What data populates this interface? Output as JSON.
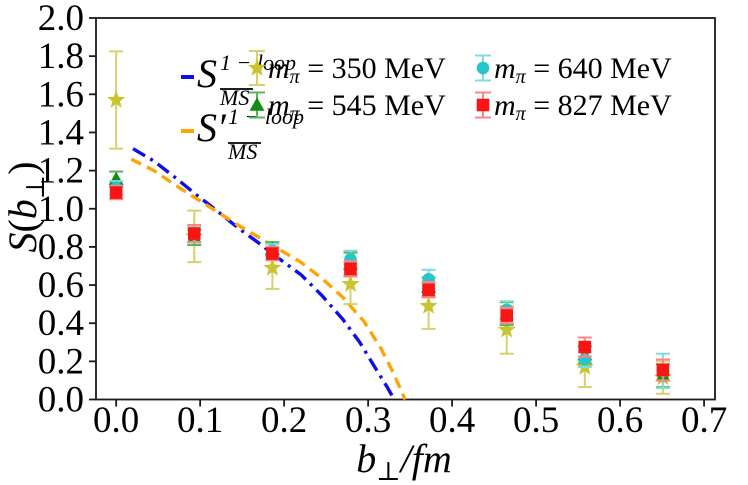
{
  "figure": {
    "description": "Lattice QCD soft function S(b_perp) versus transverse separation b_perp/fm, four pion masses with error bars, plus 1-loop MS-bar theory curves"
  },
  "chart_data": {
    "type": "scatter",
    "title": "",
    "xlabel": "b⊥/fm",
    "ylabel": "S(b⊥)",
    "xlabel_parts": {
      "sym": "b",
      "sub": "⊥",
      "rest": "/fm"
    },
    "ylabel_parts": {
      "func": "S",
      "open": "(",
      "sym": "b",
      "sub": "⊥",
      "close": ")"
    },
    "xlim": [
      -0.024,
      0.713
    ],
    "ylim": [
      0.0,
      2.0
    ],
    "xticks": [
      0.0,
      0.1,
      0.2,
      0.3,
      0.4,
      0.5,
      0.6,
      0.7
    ],
    "yticks": [
      0.0,
      0.2,
      0.4,
      0.6,
      0.8,
      1.0,
      1.2,
      1.4,
      1.6,
      1.8,
      2.0
    ],
    "grid": false,
    "legend_position": "upper-center-inside-no-frame",
    "frame_color": "#1a1a1a",
    "curves": [
      {
        "name": "S-MSbar-1loop",
        "color": "#0d0df2",
        "dash": "dashdot",
        "label": {
          "base": "S",
          "prime": "",
          "sup": "1 − loop",
          "sub": "MS",
          "overline": true
        },
        "points": [
          [
            0.02,
            1.315
          ],
          [
            0.045,
            1.25
          ],
          [
            0.07,
            1.165
          ],
          [
            0.095,
            1.075
          ],
          [
            0.12,
            0.99
          ],
          [
            0.145,
            0.9
          ],
          [
            0.17,
            0.82
          ],
          [
            0.195,
            0.735
          ],
          [
            0.22,
            0.655
          ],
          [
            0.245,
            0.545
          ],
          [
            0.27,
            0.42
          ],
          [
            0.29,
            0.3
          ],
          [
            0.31,
            0.155
          ],
          [
            0.322,
            0.07
          ],
          [
            0.331,
            0.0
          ]
        ]
      },
      {
        "name": "S-prime-MSbar-1loop",
        "color": "#ffa503",
        "dash": "dashed",
        "label": {
          "base": "S",
          "prime": "′",
          "sup": "1 − loop",
          "sub": "MS",
          "overline": true
        },
        "points": [
          [
            0.018,
            1.26
          ],
          [
            0.045,
            1.2
          ],
          [
            0.07,
            1.125
          ],
          [
            0.095,
            1.055
          ],
          [
            0.12,
            0.985
          ],
          [
            0.145,
            0.915
          ],
          [
            0.17,
            0.85
          ],
          [
            0.195,
            0.785
          ],
          [
            0.22,
            0.72
          ],
          [
            0.245,
            0.635
          ],
          [
            0.27,
            0.535
          ],
          [
            0.295,
            0.41
          ],
          [
            0.315,
            0.27
          ],
          [
            0.33,
            0.14
          ],
          [
            0.344,
            0.0
          ]
        ]
      }
    ],
    "series": [
      {
        "name": "mpi-350",
        "marker": "star",
        "color": "#c9c42e",
        "ecolor": "#d6d16b",
        "label": {
          "sym": "m",
          "sub": "π",
          "rest": " = 350 MeV"
        },
        "x": [
          0.0,
          0.093,
          0.186,
          0.279,
          0.372,
          0.465,
          0.558,
          0.651
        ],
        "y": [
          1.57,
          0.855,
          0.69,
          0.605,
          0.49,
          0.365,
          0.17,
          0.115
        ],
        "yerr": [
          0.255,
          0.135,
          0.11,
          0.105,
          0.12,
          0.125,
          0.105,
          0.085
        ]
      },
      {
        "name": "mpi-545",
        "marker": "triangle",
        "color": "#128c12",
        "ecolor": "#57b657",
        "label": {
          "sym": "m",
          "sub": "π",
          "rest": " = 545 MeV"
        },
        "x": [
          0.0,
          0.093,
          0.186,
          0.279,
          0.372,
          0.465,
          0.558,
          0.651
        ],
        "y": [
          1.155,
          0.85,
          0.79,
          0.71,
          0.59,
          0.45,
          0.235,
          0.125
        ],
        "yerr": [
          0.04,
          0.04,
          0.035,
          0.06,
          0.05,
          0.06,
          0.045,
          0.06
        ]
      },
      {
        "name": "mpi-640",
        "marker": "circle",
        "color": "#27c5ca",
        "ecolor": "#7fdce0",
        "label": {
          "sym": "m",
          "sub": "π",
          "rest": " = 640 MeV"
        },
        "x": [
          0.0,
          0.093,
          0.186,
          0.279,
          0.372,
          0.465,
          0.558,
          0.651
        ],
        "y": [
          1.11,
          0.865,
          0.78,
          0.735,
          0.63,
          0.47,
          0.21,
          0.15
        ],
        "yerr": [
          0.035,
          0.04,
          0.035,
          0.045,
          0.05,
          0.045,
          0.04,
          0.09
        ]
      },
      {
        "name": "mpi-827",
        "marker": "square",
        "color": "#fa1414",
        "ecolor": "#fc8585",
        "label": {
          "sym": "m",
          "sub": "π",
          "rest": " = 827 MeV"
        },
        "x": [
          0.0,
          0.093,
          0.186,
          0.279,
          0.372,
          0.465,
          0.558,
          0.651
        ],
        "y": [
          1.085,
          0.87,
          0.765,
          0.685,
          0.575,
          0.44,
          0.275,
          0.155
        ],
        "yerr": [
          0.035,
          0.045,
          0.035,
          0.04,
          0.04,
          0.04,
          0.05,
          0.055
        ]
      }
    ]
  }
}
